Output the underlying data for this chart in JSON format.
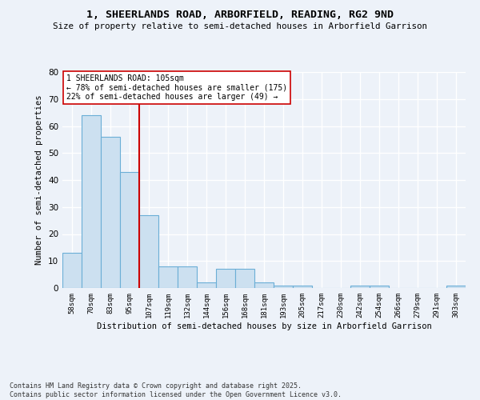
{
  "title": "1, SHEERLANDS ROAD, ARBORFIELD, READING, RG2 9ND",
  "subtitle": "Size of property relative to semi-detached houses in Arborfield Garrison",
  "xlabel": "Distribution of semi-detached houses by size in Arborfield Garrison",
  "ylabel": "Number of semi-detached properties",
  "categories": [
    "58sqm",
    "70sqm",
    "83sqm",
    "95sqm",
    "107sqm",
    "119sqm",
    "132sqm",
    "144sqm",
    "156sqm",
    "168sqm",
    "181sqm",
    "193sqm",
    "205sqm",
    "217sqm",
    "230sqm",
    "242sqm",
    "254sqm",
    "266sqm",
    "279sqm",
    "291sqm",
    "303sqm"
  ],
  "values": [
    13,
    64,
    56,
    43,
    27,
    8,
    8,
    2,
    7,
    7,
    2,
    1,
    1,
    0,
    0,
    1,
    1,
    0,
    0,
    0,
    1
  ],
  "bar_color": "#cce0f0",
  "bar_edge_color": "#6baed6",
  "highlight_index": 4,
  "highlight_line_color": "#cc0000",
  "annotation_title": "1 SHEERLANDS ROAD: 105sqm",
  "annotation_line1": "← 78% of semi-detached houses are smaller (175)",
  "annotation_line2": "22% of semi-detached houses are larger (49) →",
  "annotation_box_color": "#ffffff",
  "annotation_box_edge": "#cc0000",
  "ylim": [
    0,
    80
  ],
  "yticks": [
    0,
    10,
    20,
    30,
    40,
    50,
    60,
    70,
    80
  ],
  "footer_line1": "Contains HM Land Registry data © Crown copyright and database right 2025.",
  "footer_line2": "Contains public sector information licensed under the Open Government Licence v3.0.",
  "bg_color": "#edf2f9",
  "plot_bg_color": "#edf2f9",
  "grid_color": "#ffffff"
}
